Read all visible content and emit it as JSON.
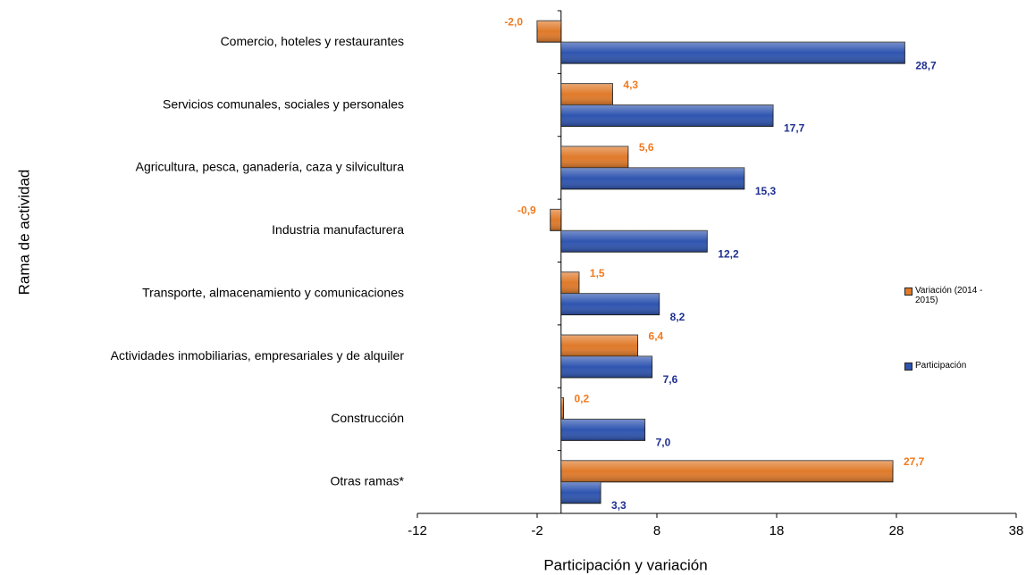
{
  "chart_data": {
    "type": "bar",
    "orientation": "horizontal",
    "x_label": "Participación y variación",
    "y_label": "Rama de actividad",
    "categories": [
      "Comercio, hoteles y restaurantes",
      "Servicios comunales, sociales y personales",
      "Agricultura, pesca, ganadería, caza y silvicultura",
      "Industria manufacturera",
      "Transporte, almacenamiento y comunicaciones",
      "Actividades inmobiliarias, empresariales y de alquiler",
      "Construcción",
      "Otras ramas*"
    ],
    "series": [
      {
        "name": "Variación (2014 - 2015)",
        "color": "#e07a2a",
        "values": [
          -2.0,
          4.3,
          5.6,
          -0.9,
          1.5,
          6.4,
          0.2,
          27.7
        ],
        "value_labels": [
          "-2,0",
          "4,3",
          "5,6",
          "-0,9",
          "1,5",
          "6,4",
          "0,2",
          "27,7"
        ]
      },
      {
        "name": "Participación",
        "color": "#2f55b0",
        "values": [
          28.7,
          17.7,
          15.3,
          12.2,
          8.2,
          7.6,
          7.0,
          3.3
        ],
        "value_labels": [
          "28,7",
          "17,7",
          "15,3",
          "12,2",
          "8,2",
          "7,6",
          "7,0",
          "3,3"
        ]
      }
    ],
    "xlim": [
      -12,
      38
    ],
    "xticks": [
      -12,
      -2,
      8,
      18,
      28,
      38
    ]
  }
}
